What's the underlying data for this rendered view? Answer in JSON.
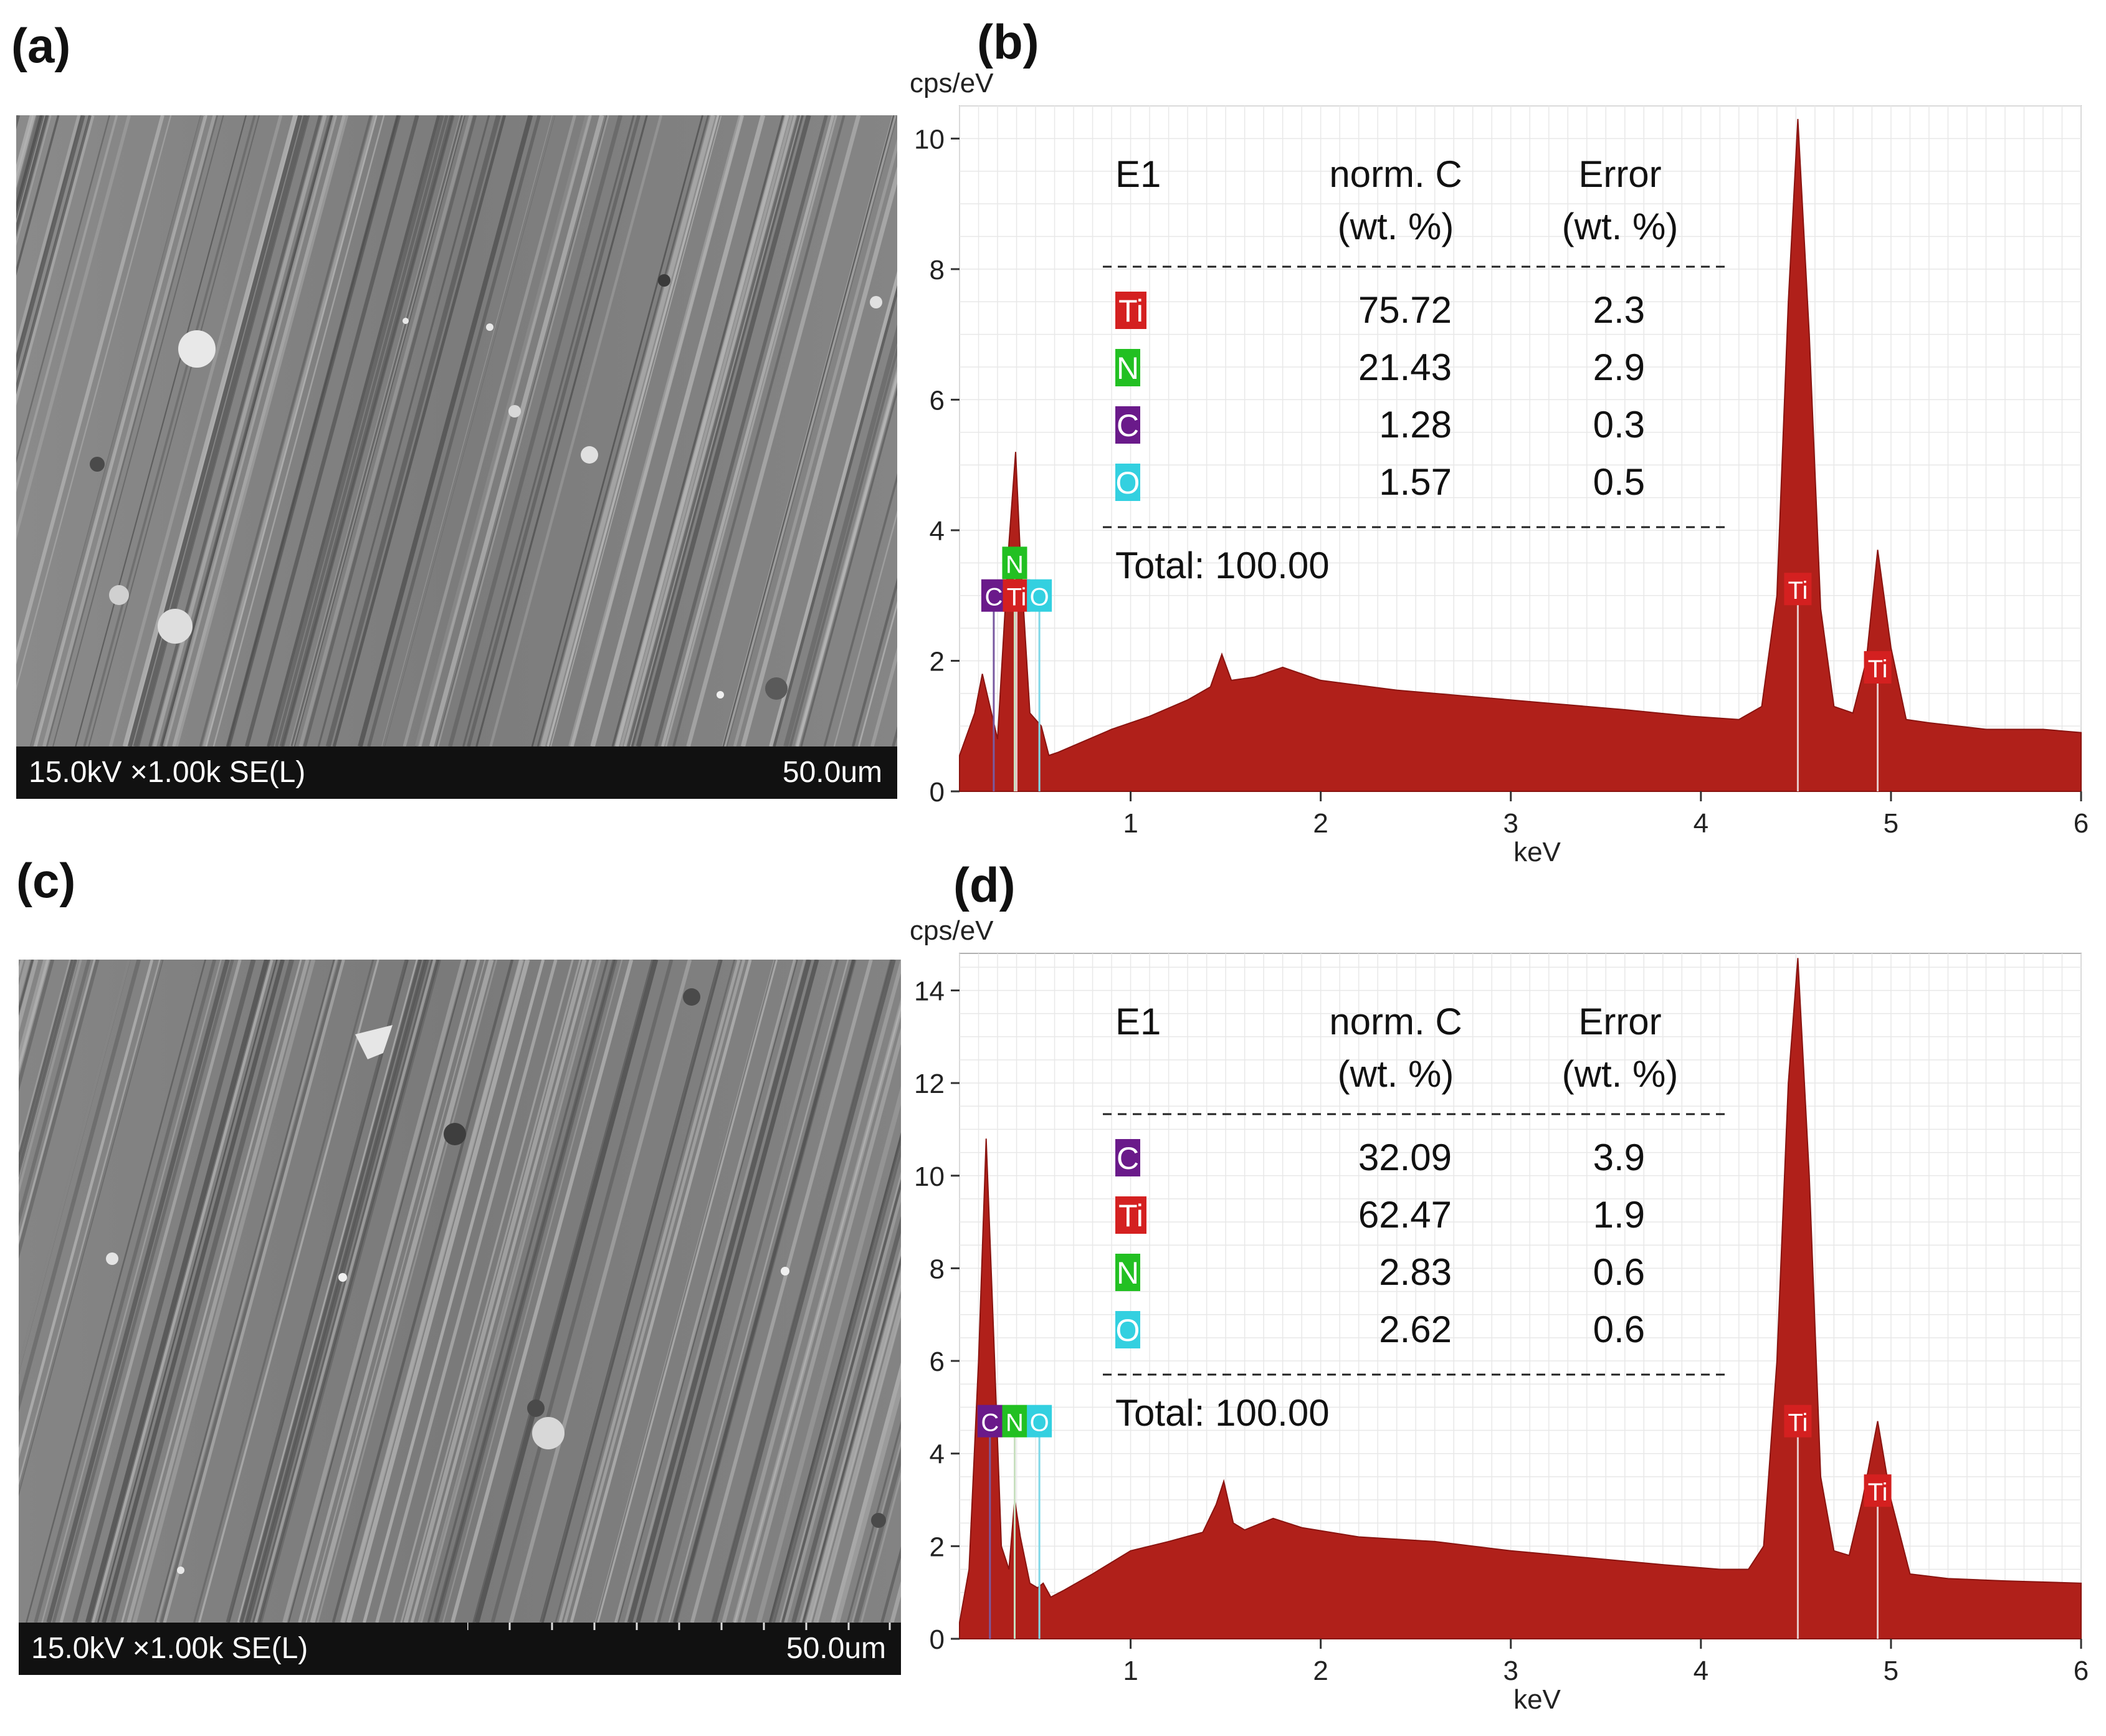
{
  "panels": {
    "a": {
      "label": "(a)",
      "params": "15.0kV ×1.00k SE(L)",
      "scale_label": "50.0um"
    },
    "b": {
      "label": "(b)"
    },
    "c": {
      "label": "(c)",
      "params": "15.0kV ×1.00k SE(L)",
      "scale_label": "50.0um"
    },
    "d": {
      "label": "(d)"
    }
  },
  "colors": {
    "spectrum_fill": "#b0201a",
    "C": "#6a1a8a",
    "Ti": "#d42020",
    "N": "#22c022",
    "O": "#33d0e0"
  },
  "chart_data": [
    {
      "type": "area",
      "panel": "b",
      "ylabel": "cps/eV",
      "xlabel": "keV",
      "xlim": [
        0.1,
        6
      ],
      "ylim": [
        0,
        10.5
      ],
      "xticks": [
        1,
        2,
        3,
        4,
        5,
        6
      ],
      "yticks": [
        0,
        2,
        4,
        6,
        8,
        10
      ],
      "grid": true,
      "spectrum": {
        "baseline": [
          [
            0.1,
            0.55
          ],
          [
            0.18,
            1.2
          ],
          [
            0.22,
            1.8
          ],
          [
            0.3,
            0.8
          ],
          [
            0.36,
            3.8
          ],
          [
            0.395,
            5.2
          ],
          [
            0.42,
            3.6
          ],
          [
            0.47,
            1.2
          ],
          [
            0.53,
            1.0
          ],
          [
            0.57,
            0.55
          ],
          [
            0.62,
            0.6
          ],
          [
            0.7,
            0.7
          ],
          [
            0.9,
            0.95
          ],
          [
            1.1,
            1.15
          ],
          [
            1.3,
            1.4
          ],
          [
            1.42,
            1.6
          ],
          [
            1.48,
            2.1
          ],
          [
            1.53,
            1.7
          ],
          [
            1.65,
            1.75
          ],
          [
            1.8,
            1.9
          ],
          [
            2.0,
            1.7
          ],
          [
            2.4,
            1.55
          ],
          [
            2.8,
            1.45
          ],
          [
            3.2,
            1.35
          ],
          [
            3.6,
            1.25
          ],
          [
            3.95,
            1.15
          ],
          [
            4.2,
            1.1
          ],
          [
            4.32,
            1.3
          ],
          [
            4.4,
            3.0
          ],
          [
            4.46,
            7.5
          ],
          [
            4.51,
            10.3
          ],
          [
            4.57,
            7.0
          ],
          [
            4.63,
            2.8
          ],
          [
            4.7,
            1.3
          ],
          [
            4.8,
            1.2
          ],
          [
            4.87,
            2.0
          ],
          [
            4.93,
            3.7
          ],
          [
            5.0,
            2.2
          ],
          [
            5.08,
            1.1
          ],
          [
            5.2,
            1.05
          ],
          [
            5.5,
            0.95
          ],
          [
            5.8,
            0.95
          ],
          [
            6.0,
            0.9
          ]
        ]
      },
      "peaks": [
        {
          "element": "C",
          "x": 0.28,
          "y": 3.0
        },
        {
          "element": "N",
          "x": 0.39,
          "y": 3.5
        },
        {
          "element": "Ti",
          "x": 0.4,
          "y": 3.0
        },
        {
          "element": "O",
          "x": 0.52,
          "y": 3.0
        },
        {
          "element": "Ti",
          "x": 4.51,
          "y": 3.1
        },
        {
          "element": "Ti",
          "x": 4.93,
          "y": 1.9
        }
      ],
      "table": {
        "title": "E1",
        "col_headers": [
          [
            "norm. C",
            "(wt. %)"
          ],
          [
            "Error",
            "(wt. %)"
          ]
        ],
        "rows": [
          {
            "element": "Ti",
            "norm_c": "75.72",
            "error": "2.3"
          },
          {
            "element": "N",
            "norm_c": "21.43",
            "error": "2.9"
          },
          {
            "element": "C",
            "norm_c": "1.28",
            "error": "0.3"
          },
          {
            "element": "O",
            "norm_c": "1.57",
            "error": "0.5"
          }
        ],
        "total": "Total: 100.00"
      }
    },
    {
      "type": "area",
      "panel": "d",
      "ylabel": "cps/eV",
      "xlabel": "keV",
      "xlim": [
        0.1,
        6
      ],
      "ylim": [
        0,
        14.8
      ],
      "xticks": [
        1,
        2,
        3,
        4,
        5,
        6
      ],
      "yticks": [
        0,
        2,
        4,
        6,
        8,
        10,
        12,
        14
      ],
      "grid": true,
      "spectrum": {
        "baseline": [
          [
            0.1,
            0.35
          ],
          [
            0.15,
            1.5
          ],
          [
            0.2,
            6.0
          ],
          [
            0.24,
            10.8
          ],
          [
            0.28,
            6.5
          ],
          [
            0.32,
            2.0
          ],
          [
            0.36,
            1.5
          ],
          [
            0.39,
            3.0
          ],
          [
            0.42,
            2.2
          ],
          [
            0.47,
            1.2
          ],
          [
            0.51,
            1.1
          ],
          [
            0.54,
            1.2
          ],
          [
            0.58,
            0.9
          ],
          [
            0.65,
            1.05
          ],
          [
            0.8,
            1.4
          ],
          [
            1.0,
            1.9
          ],
          [
            1.2,
            2.1
          ],
          [
            1.38,
            2.3
          ],
          [
            1.45,
            2.9
          ],
          [
            1.49,
            3.4
          ],
          [
            1.54,
            2.5
          ],
          [
            1.6,
            2.35
          ],
          [
            1.75,
            2.6
          ],
          [
            1.9,
            2.4
          ],
          [
            2.2,
            2.2
          ],
          [
            2.6,
            2.1
          ],
          [
            3.0,
            1.9
          ],
          [
            3.4,
            1.75
          ],
          [
            3.8,
            1.6
          ],
          [
            4.1,
            1.5
          ],
          [
            4.25,
            1.5
          ],
          [
            4.33,
            2.0
          ],
          [
            4.4,
            6.0
          ],
          [
            4.46,
            12.0
          ],
          [
            4.51,
            14.7
          ],
          [
            4.57,
            10.0
          ],
          [
            4.63,
            3.5
          ],
          [
            4.7,
            1.9
          ],
          [
            4.78,
            1.8
          ],
          [
            4.85,
            3.0
          ],
          [
            4.93,
            4.7
          ],
          [
            5.0,
            3.0
          ],
          [
            5.1,
            1.4
          ],
          [
            5.3,
            1.3
          ],
          [
            5.6,
            1.25
          ],
          [
            6.0,
            1.2
          ]
        ]
      },
      "peaks": [
        {
          "element": "C",
          "x": 0.26,
          "y": 4.7
        },
        {
          "element": "N",
          "x": 0.39,
          "y": 4.7
        },
        {
          "element": "O",
          "x": 0.52,
          "y": 4.7
        },
        {
          "element": "Ti",
          "x": 4.51,
          "y": 4.7
        },
        {
          "element": "Ti",
          "x": 4.93,
          "y": 3.2
        }
      ],
      "table": {
        "title": "E1",
        "col_headers": [
          [
            "norm. C",
            "(wt. %)"
          ],
          [
            "Error",
            "(wt. %)"
          ]
        ],
        "rows": [
          {
            "element": "C",
            "norm_c": "32.09",
            "error": "3.9"
          },
          {
            "element": "Ti",
            "norm_c": "62.47",
            "error": "1.9"
          },
          {
            "element": "N",
            "norm_c": "2.83",
            "error": "0.6"
          },
          {
            "element": "O",
            "norm_c": "2.62",
            "error": "0.6"
          }
        ],
        "total": "Total: 100.00"
      }
    }
  ]
}
